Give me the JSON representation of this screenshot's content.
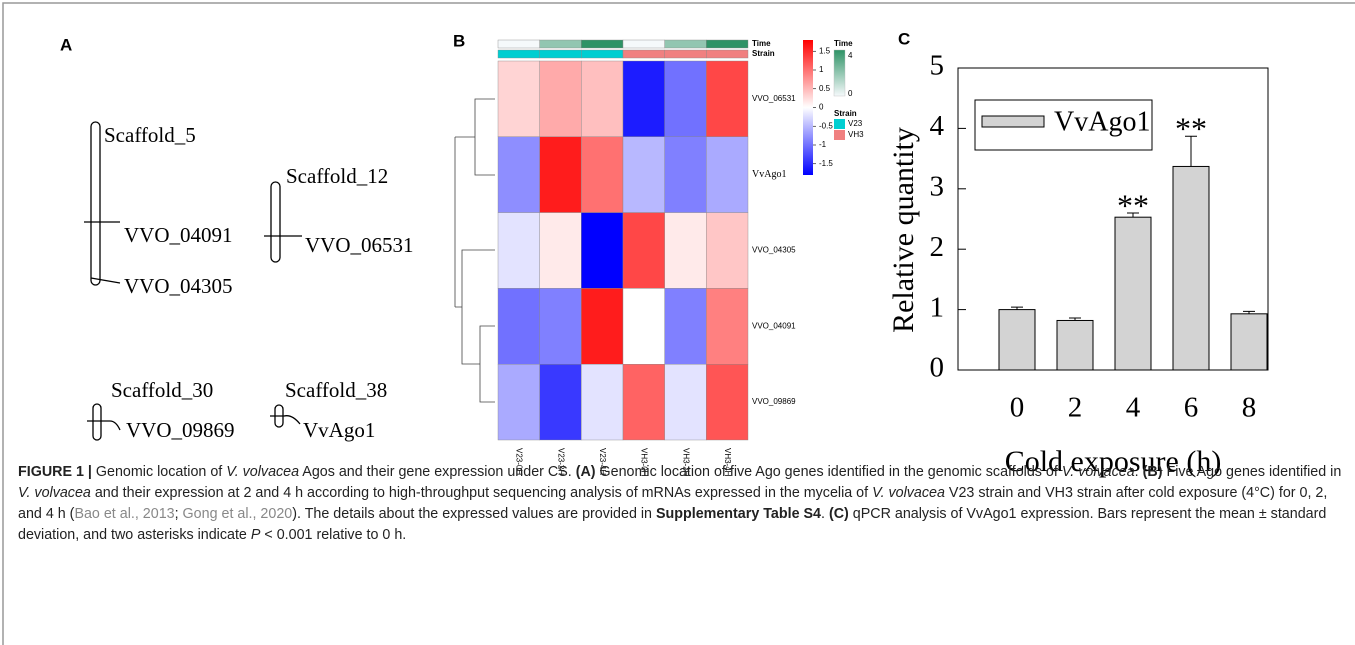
{
  "diagram": {
    "label": "A",
    "scaffolds": [
      {
        "name": "Scaffold_5",
        "genes": [
          "VVO_04091",
          "VVO_04305"
        ]
      },
      {
        "name": "Scaffold_12",
        "genes": [
          "VVO_06531"
        ]
      },
      {
        "name": "Scaffold_30",
        "genes": [
          "VVO_09869"
        ]
      },
      {
        "name": "Scaffold_38",
        "genes": [
          "VvAgo1"
        ]
      }
    ]
  },
  "chart_data": [
    {
      "type": "heatmap",
      "label": "B",
      "rows": [
        "VVO_06531",
        "VvAgo1",
        "VVO_04305",
        "VVO_04091",
        "VVO_09869"
      ],
      "columns": [
        "V23-0H",
        "V23-2H",
        "V23-4H",
        "VH3-0H",
        "VH3-2H",
        "VH3-4H"
      ],
      "values": [
        [
          0.3,
          0.6,
          0.45,
          -1.6,
          -1.0,
          1.3
        ],
        [
          -0.8,
          1.6,
          1.0,
          -0.5,
          -0.9,
          -0.6
        ],
        [
          -0.2,
          0.15,
          -1.8,
          1.3,
          0.15,
          0.4
        ],
        [
          -1.0,
          -0.9,
          1.6,
          0.0,
          -0.9,
          0.9
        ],
        [
          -0.6,
          -1.4,
          -0.2,
          1.1,
          -0.2,
          1.2
        ]
      ],
      "colors": [
        "#0000ff",
        "#ffffff",
        "#ff0000"
      ],
      "zlim": [
        -1.8,
        1.8
      ],
      "zticks": [
        1.5,
        1,
        0.5,
        0,
        -0.5,
        -1,
        -1.5
      ],
      "time_title": "Time",
      "time": [
        0,
        2,
        4,
        0,
        2,
        4
      ],
      "time_colors": [
        "#f5f9fb",
        "#2e9366"
      ],
      "time_lim": [
        0,
        4
      ],
      "time_ticks": [
        4,
        0
      ],
      "strain_title": "Strain",
      "strain": [
        "V23",
        "V23",
        "V23",
        "VH3",
        "VH3",
        "VH3"
      ],
      "strain_legend": [
        {
          "name": "V23",
          "color": "#00ced1"
        },
        {
          "name": "VH3",
          "color": "#f08080"
        }
      ]
    },
    {
      "type": "bar",
      "label": "C",
      "x_label": "Cold exposure (h)",
      "y_label": "Relative quantity",
      "categories": [
        "0",
        "2",
        "4",
        "6",
        "8"
      ],
      "series": [
        {
          "name": "VvAgo1",
          "color": "#d3d3d3",
          "values": [
            1.0,
            0.82,
            2.53,
            3.37,
            0.93
          ],
          "errors": [
            0.04,
            0.04,
            0.07,
            0.5,
            0.04
          ]
        }
      ],
      "significance": [
        {
          "category": "4",
          "text": "**"
        },
        {
          "category": "6",
          "text": "**"
        }
      ],
      "ylim": [
        0,
        5
      ],
      "yticks": [
        0,
        1,
        2,
        3,
        4,
        5
      ]
    }
  ],
  "caption": [
    {
      "text": "FIGURE 1 |",
      "style": "bold"
    },
    {
      "text": " Genomic location of ",
      "style": "plain"
    },
    {
      "text": "V. volvacea",
      "style": "italic"
    },
    {
      "text": " Agos and their gene expression under CS. ",
      "style": "plain"
    },
    {
      "text": "(A)",
      "style": "bold"
    },
    {
      "text": " Genomic location of five Ago genes identified in the genomic scaffolds of ",
      "style": "plain"
    },
    {
      "text": "V. volvacea",
      "style": "italic"
    },
    {
      "text": ". ",
      "style": "plain"
    },
    {
      "text": "(B)",
      "style": "bold"
    },
    {
      "text": " Five Ago genes identified in ",
      "style": "plain"
    },
    {
      "text": "V. volvacea",
      "style": "italic"
    },
    {
      "text": " and their expression at 2 and 4 h according to high-throughput sequencing analysis of mRNAs expressed in the mycelia of ",
      "style": "plain"
    },
    {
      "text": "V. volvacea",
      "style": "italic"
    },
    {
      "text": " V23 strain and VH3 strain after cold exposure (4°C) for 0, 2, and 4 h (",
      "style": "plain"
    },
    {
      "text": "Bao et al., 2013",
      "style": "gray"
    },
    {
      "text": "; ",
      "style": "plain"
    },
    {
      "text": "Gong et al., 2020",
      "style": "gray"
    },
    {
      "text": "). The details about the expressed values are provided in ",
      "style": "plain"
    },
    {
      "text": "Supplementary Table S4",
      "style": "bold"
    },
    {
      "text": ". ",
      "style": "plain"
    },
    {
      "text": "(C)",
      "style": "bold"
    },
    {
      "text": " qPCR analysis of VvAgo1 expression. Bars represent the mean ± standard deviation, and two asterisks indicate ",
      "style": "plain"
    },
    {
      "text": "P",
      "style": "italic"
    },
    {
      "text": " < 0.001 relative to 0 h.",
      "style": "plain"
    }
  ]
}
